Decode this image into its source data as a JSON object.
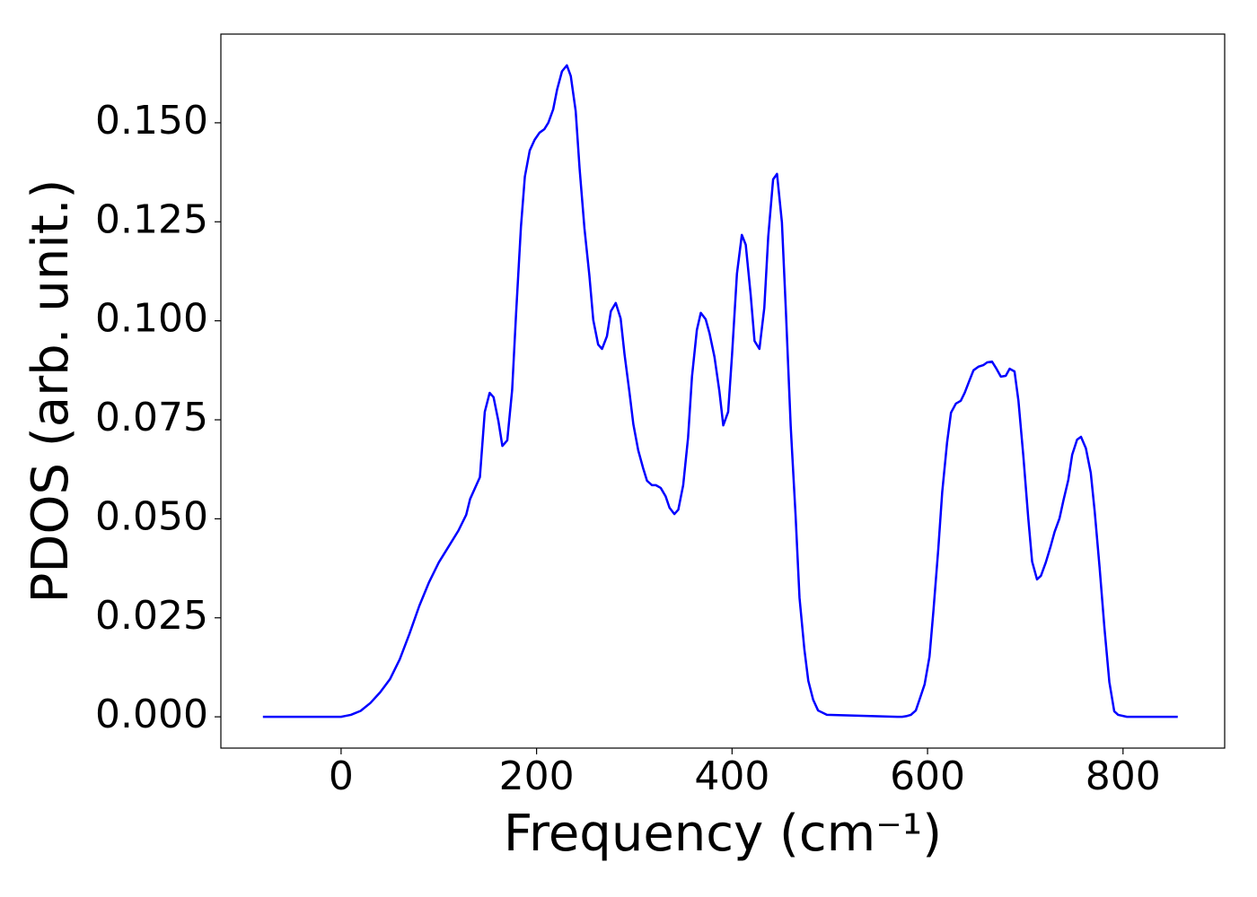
{
  "chart_data": {
    "type": "line",
    "xlabel": "Frequency (cm⁻¹)",
    "ylabel": "PDOS (arb. unit.)",
    "xlim": [
      -123,
      904
    ],
    "ylim": [
      -0.0079,
      0.1724
    ],
    "xticks": [
      0,
      200,
      400,
      600,
      800
    ],
    "yticks": [
      {
        "value": 0,
        "label": "0.000"
      },
      {
        "value": 0.025,
        "label": "0.025"
      },
      {
        "value": 0.05,
        "label": "0.050"
      },
      {
        "value": 0.075,
        "label": "0.075"
      },
      {
        "value": 0.1,
        "label": "0.100"
      },
      {
        "value": 0.125,
        "label": "0.125"
      },
      {
        "value": 0.15,
        "label": "0.150"
      }
    ],
    "grid": false,
    "x": [
      -80,
      0,
      10,
      20,
      30,
      40,
      50,
      60,
      70,
      80,
      90,
      100,
      110,
      120,
      128,
      132,
      142,
      147,
      152,
      156,
      161,
      165,
      170,
      175,
      179,
      184,
      188,
      193,
      198,
      203,
      208,
      212,
      217,
      221,
      226,
      231,
      235,
      240,
      244,
      249,
      254,
      258,
      263,
      267,
      272,
      276,
      281,
      286,
      290,
      295,
      299,
      304,
      309,
      313,
      318,
      322,
      327,
      332,
      336,
      341,
      345,
      350,
      355,
      359,
      364,
      368,
      373,
      377,
      382,
      387,
      391,
      396,
      400,
      405,
      410,
      414,
      419,
      423,
      428,
      433,
      437,
      442,
      446,
      451,
      455,
      460,
      465,
      469,
      474,
      478,
      483,
      488,
      497,
      569,
      574,
      579,
      583,
      588,
      592,
      597,
      602,
      606,
      611,
      615,
      620,
      624,
      629,
      634,
      638,
      643,
      647,
      652,
      657,
      661,
      666,
      670,
      675,
      680,
      684,
      689,
      693,
      698,
      703,
      707,
      712,
      716,
      721,
      726,
      730,
      735,
      739,
      744,
      748,
      753,
      757,
      762,
      767,
      771,
      776,
      781,
      786,
      791,
      795,
      804,
      856
    ],
    "series": [
      {
        "name": "PDOS",
        "color": "#0000ff",
        "values": [
          0,
          0,
          0.0005,
          0.0015,
          0.0035,
          0.0062,
          0.0095,
          0.0145,
          0.021,
          0.028,
          0.034,
          0.039,
          0.043,
          0.047,
          0.051,
          0.055,
          0.0605,
          0.077,
          0.0818,
          0.0807,
          0.0746,
          0.0684,
          0.0698,
          0.0825,
          0.1017,
          0.1237,
          0.1364,
          0.143,
          0.1457,
          0.1475,
          0.1484,
          0.15,
          0.1534,
          0.1584,
          0.163,
          0.1645,
          0.1618,
          0.153,
          0.1385,
          0.1233,
          0.1115,
          0.1002,
          0.094,
          0.0929,
          0.0961,
          0.1024,
          0.1045,
          0.1006,
          0.0915,
          0.082,
          0.0739,
          0.0673,
          0.0628,
          0.0596,
          0.0585,
          0.0585,
          0.0578,
          0.0557,
          0.0528,
          0.0512,
          0.0523,
          0.0585,
          0.0705,
          0.0859,
          0.0977,
          0.102,
          0.1004,
          0.0968,
          0.0909,
          0.0823,
          0.0736,
          0.077,
          0.0915,
          0.1119,
          0.1217,
          0.1192,
          0.1067,
          0.0949,
          0.0929,
          0.1033,
          0.1212,
          0.1357,
          0.1371,
          0.1249,
          0.1029,
          0.0734,
          0.0508,
          0.0301,
          0.017,
          0.0091,
          0.0043,
          0.0016,
          0.0005,
          0,
          0,
          0.0002,
          0.0005,
          0.0016,
          0.0045,
          0.0082,
          0.0152,
          0.0267,
          0.0424,
          0.0567,
          0.0693,
          0.0768,
          0.0791,
          0.0798,
          0.0818,
          0.085,
          0.0875,
          0.0884,
          0.0888,
          0.0895,
          0.0897,
          0.0881,
          0.0859,
          0.0861,
          0.0879,
          0.0872,
          0.0798,
          0.0659,
          0.0503,
          0.0392,
          0.0347,
          0.0356,
          0.039,
          0.0431,
          0.0467,
          0.0501,
          0.0546,
          0.0598,
          0.0662,
          0.07,
          0.0707,
          0.0678,
          0.0616,
          0.0519,
          0.0378,
          0.0224,
          0.0088,
          0.0014,
          0.0005,
          0,
          0
        ]
      }
    ]
  }
}
